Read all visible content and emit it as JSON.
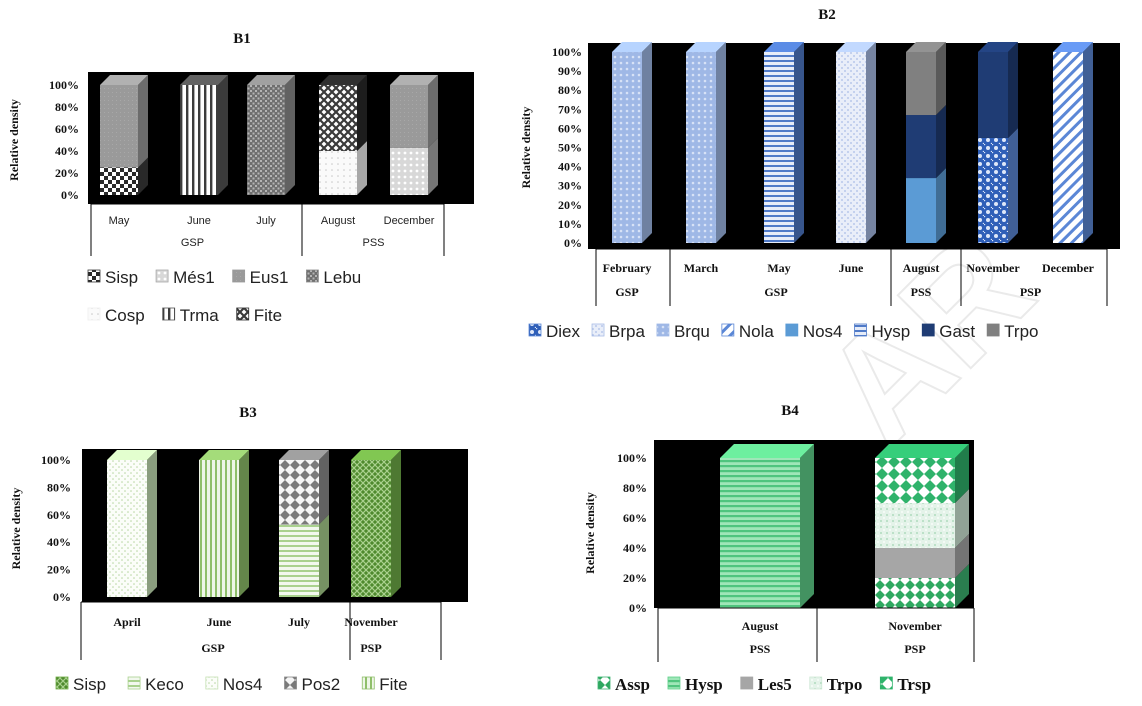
{
  "watermark": "AR",
  "chart_data": [
    {
      "id": "B1",
      "type": "bar",
      "stacked": true,
      "title": "B1",
      "ylabel": "Relative density",
      "yticks": [
        "0%",
        "20%",
        "40%",
        "60%",
        "80%",
        "100%"
      ],
      "ylim": [
        0,
        100
      ],
      "categories": [
        "May",
        "June",
        "July",
        "August",
        "December"
      ],
      "groups": [
        {
          "label": "GSP",
          "span": [
            0,
            2
          ]
        },
        {
          "label": "PSS",
          "span": [
            3,
            4
          ]
        }
      ],
      "series": [
        {
          "name": "Sisp",
          "values": [
            25,
            0,
            0,
            0,
            0
          ]
        },
        {
          "name": "Més1",
          "values": [
            0,
            0,
            0,
            0,
            43
          ]
        },
        {
          "name": "Eus1",
          "values": [
            75,
            0,
            0,
            0,
            57
          ]
        },
        {
          "name": "Lebu",
          "values": [
            0,
            0,
            100,
            0,
            0
          ]
        },
        {
          "name": "Cosp",
          "values": [
            0,
            0,
            0,
            40,
            0
          ]
        },
        {
          "name": "Trma",
          "values": [
            0,
            100,
            0,
            0,
            0
          ]
        },
        {
          "name": "Fite",
          "values": [
            0,
            0,
            0,
            60,
            0
          ]
        }
      ],
      "legend_colors": [
        "#3a3a3a",
        "#a8a8a8",
        "#9a9a9a",
        "#8c8c8c",
        "#efefef",
        "#555555",
        "#2a2a2a"
      ],
      "legend_icons": [
        "checker-icon",
        "dots-icon",
        "solid-icon",
        "grid-icon",
        "sparse-dots-icon",
        "vertical-lines-icon",
        "bowtie-icon"
      ],
      "background": "#000000",
      "grid": false,
      "legend_position": "bottom"
    },
    {
      "id": "B2",
      "type": "bar",
      "stacked": true,
      "title": "B2",
      "ylabel": "Relative density",
      "yticks": [
        "0%",
        "10%",
        "20%",
        "30%",
        "40%",
        "50%",
        "60%",
        "70%",
        "80%",
        "90%",
        "100%"
      ],
      "ylim": [
        0,
        100
      ],
      "categories": [
        "February",
        "March",
        "May",
        "June",
        "August",
        "November",
        "December"
      ],
      "groups": [
        {
          "label": "GSP",
          "span": [
            0,
            0
          ]
        },
        {
          "label": "GSP",
          "span": [
            1,
            3
          ]
        },
        {
          "label": "PSS",
          "span": [
            4,
            4
          ]
        },
        {
          "label": "PSP",
          "span": [
            5,
            6
          ]
        }
      ],
      "series": [
        {
          "name": "Diex",
          "values": [
            0,
            0,
            0,
            0,
            0,
            55,
            0
          ]
        },
        {
          "name": "Brpa",
          "values": [
            0,
            0,
            0,
            100,
            0,
            0,
            0
          ]
        },
        {
          "name": "Brqu",
          "values": [
            100,
            100,
            0,
            0,
            0,
            0,
            0
          ]
        },
        {
          "name": "Nola",
          "values": [
            0,
            0,
            0,
            0,
            0,
            0,
            100
          ]
        },
        {
          "name": "Nos4",
          "values": [
            0,
            0,
            0,
            0,
            34,
            0,
            0
          ]
        },
        {
          "name": "Hysp",
          "values": [
            0,
            0,
            100,
            0,
            0,
            0,
            0
          ]
        },
        {
          "name": "Gast",
          "values": [
            0,
            0,
            0,
            0,
            33,
            45,
            0
          ]
        },
        {
          "name": "Trpo",
          "values": [
            0,
            0,
            0,
            0,
            33,
            0,
            0
          ]
        }
      ],
      "legend_colors": [
        "#5b87d6",
        "#a9bde6",
        "#9fb8e6",
        "#5b87d6",
        "#5b9bd5",
        "#4f7ac8",
        "#1f3c74",
        "#808080"
      ],
      "legend_icons": [
        "diamond-dots-icon",
        "diagonal-lines-icon",
        "dots-icon",
        "slash-icon",
        "solid-icon",
        "horizontal-lines-icon",
        "solid-icon",
        "solid-icon"
      ],
      "background": "#000000",
      "grid": false,
      "legend_position": "bottom"
    },
    {
      "id": "B3",
      "type": "bar",
      "stacked": true,
      "title": "B3",
      "ylabel": "Relative density",
      "yticks": [
        "0%",
        "20%",
        "40%",
        "60%",
        "80%",
        "100%"
      ],
      "ylim": [
        0,
        100
      ],
      "categories": [
        "April",
        "June",
        "July",
        "November"
      ],
      "groups": [
        {
          "label": "GSP",
          "span": [
            0,
            2
          ]
        },
        {
          "label": "PSP",
          "span": [
            3,
            3
          ]
        }
      ],
      "series": [
        {
          "name": "Sisp",
          "values": [
            0,
            0,
            0,
            100
          ]
        },
        {
          "name": "Keco",
          "values": [
            0,
            0,
            53,
            0
          ]
        },
        {
          "name": "Nos4",
          "values": [
            100,
            0,
            0,
            0
          ]
        },
        {
          "name": "Pos2",
          "values": [
            0,
            0,
            47,
            0
          ]
        },
        {
          "name": "Fite",
          "values": [
            0,
            100,
            0,
            0
          ]
        }
      ],
      "legend_colors": [
        "#70ad47",
        "#a9d18e",
        "#c5e0b4",
        "#8c8c8c",
        "#8fbf6a"
      ],
      "legend_icons": [
        "crosshatch-icon",
        "horizontal-lines-icon",
        "sparse-dots-icon",
        "diamond-dots-icon",
        "vertical-lines-icon"
      ],
      "background": "#000000",
      "grid": false,
      "legend_position": "bottom"
    },
    {
      "id": "B4",
      "type": "bar",
      "stacked": true,
      "title": "B4",
      "ylabel": "Relative density",
      "yticks": [
        "0%",
        "20%",
        "40%",
        "60%",
        "80%",
        "100%"
      ],
      "ylim": [
        0,
        100
      ],
      "categories": [
        "August",
        "November"
      ],
      "groups": [
        {
          "label": "PSS",
          "span": [
            0,
            0
          ]
        },
        {
          "label": "PSP",
          "span": [
            1,
            1
          ]
        }
      ],
      "series": [
        {
          "name": "Assp",
          "values": [
            0,
            20
          ]
        },
        {
          "name": "Hysp",
          "values": [
            100,
            0
          ]
        },
        {
          "name": "Les5",
          "values": [
            0,
            20
          ]
        },
        {
          "name": "Trpo",
          "values": [
            0,
            30
          ]
        },
        {
          "name": "Trsp",
          "values": [
            0,
            30
          ]
        }
      ],
      "legend_colors": [
        "#3cb371",
        "#5fd08a",
        "#a6a6a6",
        "#cfe8d6",
        "#2fb36b"
      ],
      "legend_icons": [
        "bowtie-icon",
        "horizontal-lines-icon",
        "solid-icon",
        "sparse-dots-icon",
        "diamond-dots-icon"
      ],
      "background": "#000000",
      "grid": false,
      "legend_position": "bottom"
    }
  ]
}
